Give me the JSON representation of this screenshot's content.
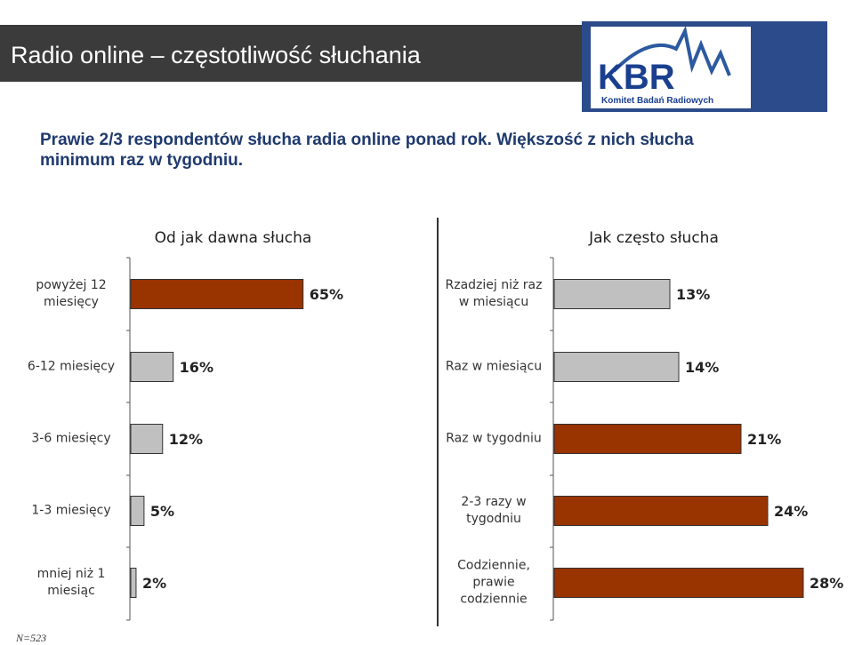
{
  "header": {
    "title": "Radio online – częstotliwość słuchania",
    "subtitle": "Prawie 2/3 respondentów słucha radia online ponad rok. Większość z nich słucha minimum raz w tygodniu."
  },
  "logo": {
    "text": "KBR",
    "caption": "Komitet Badań Radiowych",
    "colors": {
      "background": "#2c4b8a",
      "text": "#1a3f8f",
      "swoosh": "#2c5aa0"
    }
  },
  "colors": {
    "accent": "#993300",
    "neutral": "#c0c0c0",
    "bar_border": "#333333"
  },
  "chart_data": [
    {
      "type": "bar",
      "orientation": "horizontal",
      "title": "Od jak dawna słucha",
      "categories": [
        "powyżej 12 miesięcy",
        "6-12 miesięcy",
        "3-6 miesięcy",
        "1-3 miesięcy",
        "mniej niż 1 miesiąc"
      ],
      "values": [
        65,
        16,
        12,
        5,
        2
      ],
      "value_labels": [
        "65%",
        "16%",
        "12%",
        "5%",
        "2%"
      ],
      "highlight": [
        true,
        false,
        false,
        false,
        false
      ],
      "xlim": [
        0,
        100
      ]
    },
    {
      "type": "bar",
      "orientation": "horizontal",
      "title": "Jak często słucha",
      "categories": [
        "Rzadziej niż raz w miesiącu",
        "Raz w miesiącu",
        "Raz w tygodniu",
        "2-3 razy w tygodniu",
        "Codziennie, prawie codziennie"
      ],
      "values": [
        13,
        14,
        21,
        24,
        28
      ],
      "value_labels": [
        "13%",
        "14%",
        "21%",
        "24%",
        "28%"
      ],
      "highlight": [
        false,
        false,
        true,
        true,
        true
      ],
      "xlim": [
        0,
        100
      ]
    }
  ],
  "footnote": "N=523"
}
